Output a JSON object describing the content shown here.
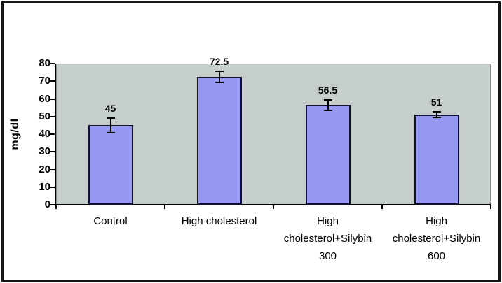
{
  "chart_data": {
    "type": "bar",
    "title": "",
    "xlabel": "",
    "ylabel": "mg/dl",
    "ylim": [
      0,
      80
    ],
    "ytick_step": 10,
    "grid": false,
    "legend": "none",
    "categories": [
      "Control",
      "High cholesterol",
      "High cholesterol+Silybin 300",
      "High cholesterol+Silybin 600"
    ],
    "values": [
      45,
      72.5,
      56.5,
      51
    ],
    "errors": [
      4.5,
      3.5,
      3.5,
      2
    ],
    "value_labels": [
      "45",
      "72.5",
      "56.5",
      "51"
    ],
    "colors": {
      "bar_fill": "#9699F2",
      "bar_border": "#10102A",
      "plot_bg": "#C6CECC",
      "plot_border": "#8A9290",
      "axis": "#000000",
      "frame_border": "#151515",
      "background": "#FFFFFF"
    }
  }
}
